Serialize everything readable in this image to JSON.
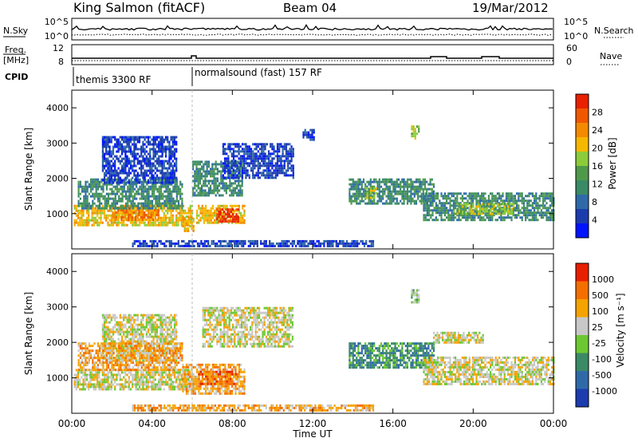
{
  "header": {
    "station": "King Salmon (fitACF)",
    "beam": "Beam 04",
    "date": "19/Mar/2012"
  },
  "summary": {
    "noise": {
      "left_label": "N.Sky",
      "right_label": "N.Search",
      "left_ticks": [
        "10^5",
        "10^0"
      ],
      "right_ticks": [
        "10^5",
        "10^0"
      ]
    },
    "freq": {
      "left_label_line1": "Freq.",
      "left_label_line2": "[MHz]",
      "left_ticks": [
        "12",
        "8"
      ],
      "right_label": "Nave",
      "right_ticks": [
        "60",
        "0"
      ]
    },
    "cpid": {
      "label": "CPID",
      "segments": [
        {
          "name": "themis 3300 RF",
          "start_hour": 0
        },
        {
          "name": "normalsound (fast) 157 RF",
          "start_hour": 6
        }
      ]
    }
  },
  "chart_data": [
    {
      "type": "heatmap",
      "parameter": "power",
      "ylabel": "Slant Range [km]",
      "xlim": [
        0,
        24
      ],
      "ylim": [
        0,
        4500
      ],
      "yticks": [
        "1000",
        "2000",
        "3000",
        "4000"
      ],
      "colorbar": {
        "label": "Power [dB]",
        "range": [
          0,
          32
        ],
        "ticks": [
          "28",
          "24",
          "20",
          "16",
          "12",
          "8",
          "4"
        ],
        "colors": [
          "#0014ff",
          "#1c3cae",
          "#2f6aa8",
          "#3b8a66",
          "#4f9a4a",
          "#8ccc3a",
          "#f5b800",
          "#f58a00",
          "#f05800",
          "#e82000"
        ]
      },
      "regions": [
        {
          "t0": 0.1,
          "t1": 6.0,
          "r0": 700,
          "r1": 1250,
          "level": 20
        },
        {
          "t0": 2.0,
          "t1": 4.3,
          "r0": 850,
          "r1": 1200,
          "level": 24
        },
        {
          "t0": 0.3,
          "t1": 5.5,
          "r0": 1150,
          "r1": 2000,
          "level": 10
        },
        {
          "t0": 1.5,
          "t1": 5.2,
          "r0": 1900,
          "r1": 3200,
          "level": 6
        },
        {
          "t0": 5.5,
          "t1": 6.1,
          "r0": 500,
          "r1": 950,
          "level": 22
        },
        {
          "t0": 6.2,
          "t1": 8.6,
          "r0": 750,
          "r1": 1250,
          "level": 22
        },
        {
          "t0": 7.2,
          "t1": 8.3,
          "r0": 800,
          "r1": 1150,
          "level": 30
        },
        {
          "t0": 6.0,
          "t1": 8.5,
          "r0": 1500,
          "r1": 2500,
          "level": 10
        },
        {
          "t0": 7.5,
          "t1": 11.0,
          "r0": 2000,
          "r1": 3000,
          "level": 6
        },
        {
          "t0": 11.5,
          "t1": 12.1,
          "r0": 3100,
          "r1": 3400,
          "level": 5
        },
        {
          "t0": 13.8,
          "t1": 18.0,
          "r0": 1300,
          "r1": 2000,
          "level": 10
        },
        {
          "t0": 14.6,
          "t1": 15.2,
          "r0": 1450,
          "r1": 1750,
          "level": 18
        },
        {
          "t0": 16.9,
          "t1": 17.3,
          "r0": 3100,
          "r1": 3500,
          "level": 18
        },
        {
          "t0": 17.5,
          "t1": 24.0,
          "r0": 800,
          "r1": 1600,
          "level": 10
        },
        {
          "t0": 19.0,
          "t1": 22.0,
          "r0": 1000,
          "r1": 1300,
          "level": 16
        },
        {
          "t0": 3.0,
          "t1": 15.0,
          "r0": 50,
          "r1": 250,
          "level": 6
        }
      ]
    },
    {
      "type": "heatmap",
      "parameter": "velocity",
      "ylabel": "Slant Range [km]",
      "xlabel": "Time UT",
      "xlim": [
        0,
        24
      ],
      "ylim": [
        0,
        4500
      ],
      "yticks": [
        "1000",
        "2000",
        "3000",
        "4000"
      ],
      "xticks": [
        "00:00",
        "04:00",
        "08:00",
        "12:00",
        "16:00",
        "20:00",
        "00:00"
      ],
      "colorbar": {
        "label": "Velocity [m s⁻¹]",
        "ticks": [
          "1000",
          "500",
          "100",
          "25",
          "-25",
          "-100",
          "-500",
          "-1000"
        ],
        "colors": [
          "#1c3cae",
          "#2f6aa8",
          "#3b8a66",
          "#6cc832",
          "#c8c8c8",
          "#f5a300",
          "#f56e00",
          "#e81e00"
        ]
      },
      "regions": [
        {
          "t0": 0.1,
          "t1": 6.0,
          "r0": 700,
          "r1": 1250,
          "level": 4
        },
        {
          "t0": 1.5,
          "t1": 5.2,
          "r0": 1500,
          "r1": 2800,
          "level": 4
        },
        {
          "t0": 0.3,
          "t1": 5.5,
          "r0": 1200,
          "r1": 2000,
          "level": 5
        },
        {
          "t0": 5.5,
          "t1": 8.6,
          "r0": 550,
          "r1": 1400,
          "level": 5
        },
        {
          "t0": 6.3,
          "t1": 8.3,
          "r0": 800,
          "r1": 1200,
          "level": 6
        },
        {
          "t0": 6.5,
          "t1": 11.0,
          "r0": 1900,
          "r1": 3000,
          "level": 4
        },
        {
          "t0": 13.8,
          "t1": 18.0,
          "r0": 1300,
          "r1": 2000,
          "level": 2
        },
        {
          "t0": 16.9,
          "t1": 17.3,
          "r0": 3100,
          "r1": 3500,
          "level": 3
        },
        {
          "t0": 17.5,
          "t1": 24.0,
          "r0": 800,
          "r1": 1600,
          "level": 4
        },
        {
          "t0": 18.0,
          "t1": 20.5,
          "r0": 2000,
          "r1": 2300,
          "level": 4
        },
        {
          "t0": 3.0,
          "t1": 15.0,
          "r0": 50,
          "r1": 250,
          "level": 5
        }
      ]
    }
  ]
}
